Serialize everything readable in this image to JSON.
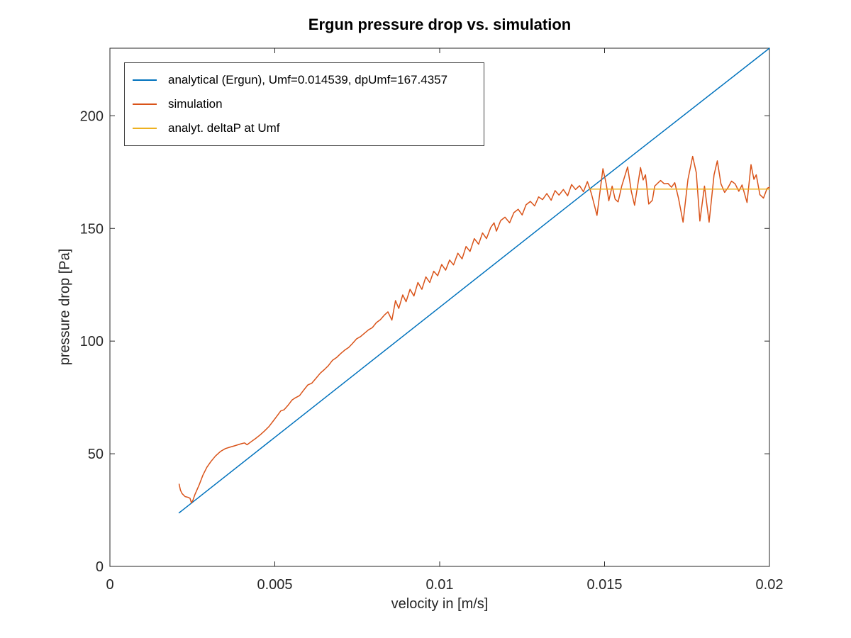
{
  "colors": {
    "axis": "#262626",
    "background": "#ffffff"
  },
  "chart_data": {
    "type": "line",
    "title": "Ergun pressure drop vs. simulation",
    "xlabel": "velocity in [m/s]",
    "ylabel": "pressure drop [Pa]",
    "xlim": [
      0,
      0.02
    ],
    "ylim": [
      0,
      230
    ],
    "xticks": [
      0,
      0.005,
      0.01,
      0.015,
      0.02
    ],
    "xtick_labels": [
      "0",
      "0.005",
      "0.01",
      "0.015",
      "0.02"
    ],
    "yticks": [
      0,
      50,
      100,
      150,
      200
    ],
    "ytick_labels": [
      "0",
      "50",
      "100",
      "150",
      "200"
    ],
    "grid": false,
    "legend_position": "top-left-inside",
    "series": [
      {
        "key": "analytical",
        "name": "analytical (Ergun), Umf=0.014539, dpUmf=167.4357",
        "color": "#0072BD",
        "points": [
          [
            0.0021,
            23.8
          ],
          [
            0.014539,
            167.4357
          ],
          [
            0.02,
            230
          ]
        ]
      },
      {
        "key": "simulation",
        "name": "simulation",
        "color": "#D95319",
        "points": [
          [
            0.0021,
            36.5
          ],
          [
            0.00214,
            33.8
          ],
          [
            0.00219,
            32.3
          ],
          [
            0.00228,
            31.0
          ],
          [
            0.00238,
            30.6
          ],
          [
            0.00243,
            30.2
          ],
          [
            0.00247,
            28.2
          ],
          [
            0.00252,
            29.5
          ],
          [
            0.00258,
            32.0
          ],
          [
            0.0027,
            36.0
          ],
          [
            0.00282,
            40.5
          ],
          [
            0.00294,
            44.0
          ],
          [
            0.00306,
            46.5
          ],
          [
            0.0032,
            49.0
          ],
          [
            0.00335,
            51.0
          ],
          [
            0.0035,
            52.3
          ],
          [
            0.00365,
            53.0
          ],
          [
            0.0038,
            53.6
          ],
          [
            0.00395,
            54.3
          ],
          [
            0.00408,
            54.8
          ],
          [
            0.00416,
            54.0
          ],
          [
            0.00428,
            55.3
          ],
          [
            0.00442,
            56.8
          ],
          [
            0.00455,
            58.3
          ],
          [
            0.00468,
            60.0
          ],
          [
            0.00482,
            62.0
          ],
          [
            0.00495,
            64.5
          ],
          [
            0.00508,
            67.0
          ],
          [
            0.00518,
            69.0
          ],
          [
            0.00528,
            69.5
          ],
          [
            0.0054,
            71.5
          ],
          [
            0.00552,
            73.8
          ],
          [
            0.00562,
            74.8
          ],
          [
            0.00575,
            75.8
          ],
          [
            0.00588,
            78.3
          ],
          [
            0.006,
            80.5
          ],
          [
            0.00612,
            81.3
          ],
          [
            0.00625,
            83.5
          ],
          [
            0.00638,
            85.8
          ],
          [
            0.0065,
            87.3
          ],
          [
            0.00662,
            89.0
          ],
          [
            0.00675,
            91.5
          ],
          [
            0.00688,
            92.8
          ],
          [
            0.007,
            94.5
          ],
          [
            0.00712,
            96.0
          ],
          [
            0.00724,
            97.2
          ],
          [
            0.00736,
            99.0
          ],
          [
            0.00748,
            101.0
          ],
          [
            0.0076,
            102.0
          ],
          [
            0.00772,
            103.5
          ],
          [
            0.00784,
            105.0
          ],
          [
            0.00796,
            106.0
          ],
          [
            0.00808,
            108.2
          ],
          [
            0.0082,
            109.5
          ],
          [
            0.00832,
            111.5
          ],
          [
            0.00843,
            113.0
          ],
          [
            0.00855,
            109.3
          ],
          [
            0.00866,
            118.0
          ],
          [
            0.00876,
            114.5
          ],
          [
            0.00888,
            120.5
          ],
          [
            0.00898,
            117.5
          ],
          [
            0.0091,
            123.0
          ],
          [
            0.00922,
            120.0
          ],
          [
            0.00934,
            126.0
          ],
          [
            0.00946,
            123.0
          ],
          [
            0.00958,
            128.5
          ],
          [
            0.0097,
            126.0
          ],
          [
            0.00982,
            131.0
          ],
          [
            0.00994,
            129.0
          ],
          [
            0.01006,
            134.0
          ],
          [
            0.01018,
            131.5
          ],
          [
            0.0103,
            136.0
          ],
          [
            0.01042,
            133.8
          ],
          [
            0.01055,
            139.0
          ],
          [
            0.01068,
            136.5
          ],
          [
            0.0108,
            142.0
          ],
          [
            0.01092,
            139.8
          ],
          [
            0.01105,
            145.5
          ],
          [
            0.01118,
            143.0
          ],
          [
            0.0113,
            148.0
          ],
          [
            0.01142,
            145.5
          ],
          [
            0.01155,
            150.5
          ],
          [
            0.01165,
            152.5
          ],
          [
            0.01172,
            148.8
          ],
          [
            0.01185,
            153.5
          ],
          [
            0.01198,
            155.0
          ],
          [
            0.01212,
            152.5
          ],
          [
            0.01225,
            157.0
          ],
          [
            0.01238,
            158.5
          ],
          [
            0.0125,
            156.0
          ],
          [
            0.01262,
            160.5
          ],
          [
            0.01275,
            162.0
          ],
          [
            0.01288,
            160.0
          ],
          [
            0.013,
            164.0
          ],
          [
            0.01312,
            162.8
          ],
          [
            0.01325,
            165.5
          ],
          [
            0.01338,
            162.5
          ],
          [
            0.0135,
            166.8
          ],
          [
            0.01362,
            164.8
          ],
          [
            0.01375,
            167.3
          ],
          [
            0.01388,
            164.5
          ],
          [
            0.014,
            169.5
          ],
          [
            0.01412,
            167.3
          ],
          [
            0.01424,
            169.0
          ],
          [
            0.01436,
            166.3
          ],
          [
            0.01448,
            170.8
          ],
          [
            0.0146,
            165.5
          ],
          [
            0.01477,
            155.8
          ],
          [
            0.01495,
            176.5
          ],
          [
            0.01505,
            169.8
          ],
          [
            0.01513,
            162.3
          ],
          [
            0.01523,
            168.8
          ],
          [
            0.01532,
            163.0
          ],
          [
            0.01541,
            161.8
          ],
          [
            0.01552,
            168.8
          ],
          [
            0.0157,
            177.3
          ],
          [
            0.01581,
            166.5
          ],
          [
            0.01591,
            160.3
          ],
          [
            0.01609,
            177.0
          ],
          [
            0.01617,
            171.5
          ],
          [
            0.01624,
            173.8
          ],
          [
            0.01634,
            160.8
          ],
          [
            0.01645,
            162.5
          ],
          [
            0.01652,
            168.8
          ],
          [
            0.0167,
            171.3
          ],
          [
            0.01681,
            169.8
          ],
          [
            0.01692,
            170.0
          ],
          [
            0.01703,
            168.3
          ],
          [
            0.01713,
            170.3
          ],
          [
            0.01724,
            163.5
          ],
          [
            0.01738,
            152.8
          ],
          [
            0.01753,
            171.8
          ],
          [
            0.01767,
            182.0
          ],
          [
            0.01778,
            174.8
          ],
          [
            0.01789,
            153.3
          ],
          [
            0.01803,
            168.8
          ],
          [
            0.01817,
            152.8
          ],
          [
            0.01832,
            173.8
          ],
          [
            0.01842,
            180.0
          ],
          [
            0.01853,
            169.8
          ],
          [
            0.01864,
            166.0
          ],
          [
            0.01875,
            168.3
          ],
          [
            0.01885,
            171.0
          ],
          [
            0.01896,
            169.8
          ],
          [
            0.01907,
            166.5
          ],
          [
            0.01917,
            169.3
          ],
          [
            0.01932,
            161.5
          ],
          [
            0.01944,
            178.3
          ],
          [
            0.01953,
            171.8
          ],
          [
            0.0196,
            173.8
          ],
          [
            0.01971,
            165.0
          ],
          [
            0.01982,
            163.5
          ],
          [
            0.01993,
            167.8
          ],
          [
            0.02,
            168.3
          ]
        ]
      },
      {
        "key": "deltaP-at-Umf",
        "name": "analyt. deltaP at Umf",
        "color": "#EDB120",
        "points": [
          [
            0.014539,
            167.4357
          ],
          [
            0.02,
            167.4357
          ]
        ]
      }
    ]
  }
}
